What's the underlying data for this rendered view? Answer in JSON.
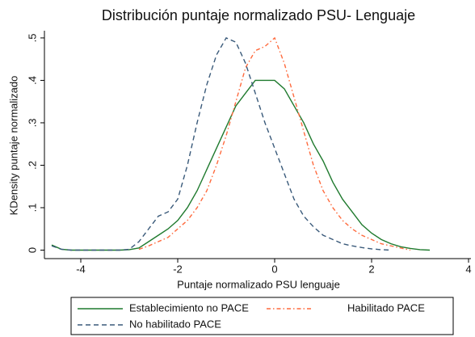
{
  "chart_data": {
    "type": "line",
    "title": "Distribución puntaje normalizado PSU- Lenguaje",
    "x_label": "Puntaje normalizado PSU lenguaje",
    "y_label": "KDensity puntaje normalizado",
    "x": [
      -4.6,
      -4.4,
      -4.2,
      -4.0,
      -3.8,
      -3.6,
      -3.4,
      -3.2,
      -3.0,
      -2.8,
      -2.6,
      -2.4,
      -2.2,
      -2.0,
      -1.8,
      -1.6,
      -1.4,
      -1.2,
      -1.0,
      -0.8,
      -0.6,
      -0.4,
      -0.2,
      0,
      0.2,
      0.4,
      0.6,
      0.8,
      1.0,
      1.2,
      1.4,
      1.6,
      1.8,
      2.0,
      2.2,
      2.4,
      2.6,
      2.8,
      3.0,
      3.2
    ],
    "series": [
      {
        "name": "Establecimiento no PACE",
        "color": "#1f7a2e",
        "style": "solid",
        "values": [
          0.012,
          0.002,
          0,
          0,
          0,
          0,
          0,
          0,
          0.001,
          0.005,
          0.02,
          0.035,
          0.05,
          0.07,
          0.1,
          0.14,
          0.19,
          0.24,
          0.29,
          0.34,
          0.37,
          0.4,
          0.4,
          0.4,
          0.38,
          0.34,
          0.3,
          0.25,
          0.21,
          0.16,
          0.12,
          0.09,
          0.06,
          0.04,
          0.025,
          0.015,
          0.008,
          0.004,
          0.001,
          0
        ]
      },
      {
        "name": "Habilitado PACE",
        "color": "#ff6a3d",
        "style": "dashdot",
        "values": [
          null,
          null,
          null,
          null,
          null,
          null,
          null,
          null,
          null,
          0.002,
          0.01,
          0.02,
          0.03,
          0.05,
          0.07,
          0.1,
          0.14,
          0.2,
          0.27,
          0.35,
          0.43,
          0.47,
          0.48,
          0.5,
          0.44,
          0.36,
          0.28,
          0.2,
          0.14,
          0.1,
          0.07,
          0.05,
          0.035,
          0.025,
          0.015,
          0.01,
          0.005,
          0,
          null,
          null
        ]
      },
      {
        "name": "No habilitado PACE",
        "color": "#3a5a7a",
        "style": "dash",
        "values": [
          0.01,
          0.002,
          0,
          0,
          0,
          0,
          0,
          0,
          0.002,
          0.02,
          0.05,
          0.08,
          0.09,
          0.12,
          0.2,
          0.3,
          0.39,
          0.46,
          0.5,
          0.49,
          0.44,
          0.37,
          0.3,
          0.24,
          0.18,
          0.12,
          0.08,
          0.055,
          0.035,
          0.025,
          0.015,
          0.01,
          0.006,
          0.003,
          0.001,
          0,
          null,
          null,
          null,
          null
        ]
      }
    ],
    "xlim": [
      -4.75,
      4.05
    ],
    "xticks": [
      -4,
      -2,
      0,
      2,
      4
    ],
    "ylim": [
      -0.02,
      0.517
    ],
    "yticks": [
      0,
      {
        "value": 0.1,
        "label": ".1"
      },
      {
        "value": 0.2,
        "label": ".2"
      },
      {
        "value": 0.3,
        "label": ".3"
      },
      {
        "value": 0.4,
        "label": ".4"
      },
      {
        "value": 0.5,
        "label": ".5"
      }
    ],
    "grid": false,
    "legend": "bottom"
  }
}
